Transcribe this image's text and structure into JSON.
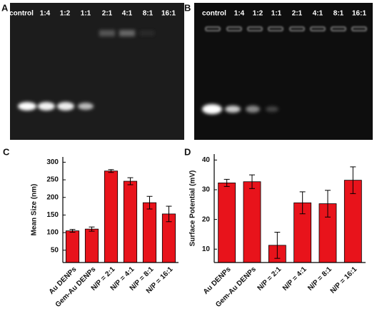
{
  "gels": [
    {
      "panel": "A",
      "lanes": [
        "control",
        "1:4",
        "1:2",
        "1:1",
        "2:1",
        "4:1",
        "8:1",
        "16:1"
      ]
    },
    {
      "panel": "B",
      "lanes": [
        "control",
        "1:4",
        "1:2",
        "1:1",
        "2:1",
        "4:1",
        "8:1",
        "16:1"
      ]
    }
  ],
  "chart_data": [
    {
      "type": "bar",
      "panel": "C",
      "y_label": "Mean Size (nm)",
      "categories": [
        "Au DENPs",
        "Gem-Au DENPs",
        "N/P = 2:1",
        "N/P = 4:1",
        "N/P = 8:1",
        "N/P = 16:1"
      ],
      "values": [
        105,
        110,
        275,
        246,
        185,
        153
      ],
      "errors": [
        4,
        6,
        4,
        10,
        18,
        22
      ],
      "color": "#e8131b",
      "ylim": [
        15,
        315
      ],
      "yticks": [
        50,
        100,
        150,
        200,
        250,
        300
      ]
    },
    {
      "type": "bar",
      "panel": "D",
      "y_label": "Surface Potential (mV)",
      "categories": [
        "Au DENPs",
        "Gem-Au DENPs",
        "N/P = 2:1",
        "N/P = 4:1",
        "N/P = 8:1",
        "N/P = 16:1"
      ],
      "values": [
        32.3,
        32.7,
        11.3,
        25.6,
        25.3,
        33.2
      ],
      "errors": [
        1.2,
        2.3,
        4.4,
        3.7,
        4.5,
        4.5
      ],
      "color": "#e8131b",
      "ylim": [
        5.5,
        42
      ],
      "yticks": [
        10,
        20,
        30,
        40
      ]
    }
  ]
}
